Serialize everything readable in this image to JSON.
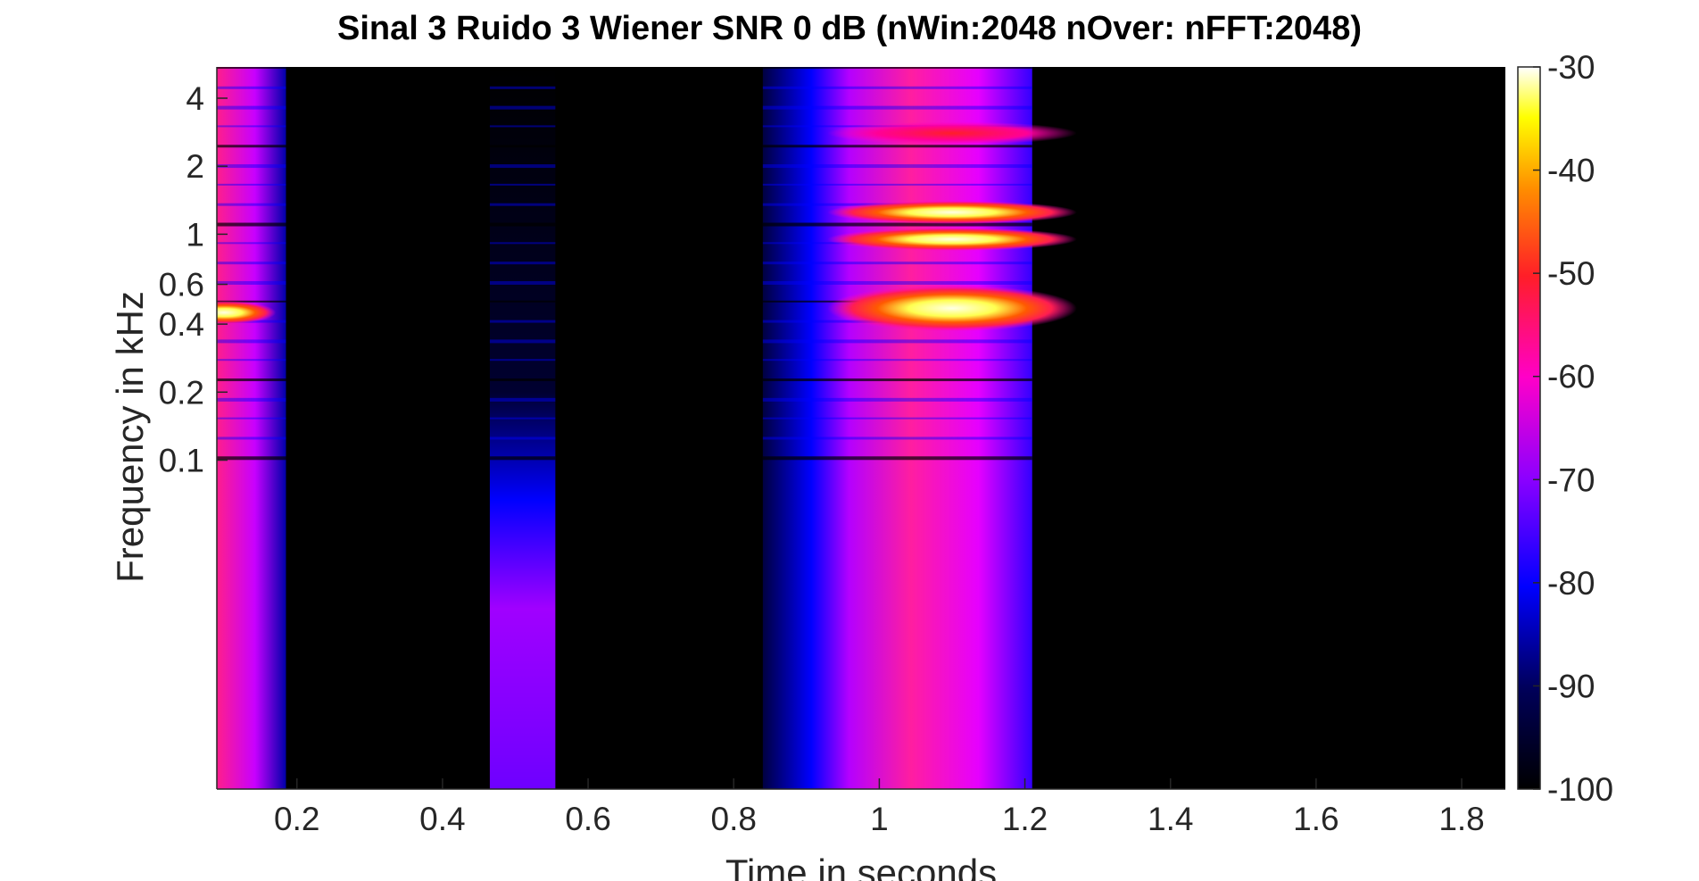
{
  "chart_data": {
    "type": "heatmap",
    "title": "Sinal 3 Ruido 3 Wiener SNR 0 dB (nWin:2048 nOver: nFFT:2048)",
    "xlabel": "Time in seconds",
    "ylabel": "Frequency in kHz",
    "x_scale": "linear",
    "y_scale": "log",
    "xlim": [
      0.09,
      1.86
    ],
    "ylim_khz": [
      0.0035,
      5.5
    ],
    "x_ticks": [
      {
        "value": 0.2,
        "label": "0.2"
      },
      {
        "value": 0.4,
        "label": "0.4"
      },
      {
        "value": 0.6,
        "label": "0.6"
      },
      {
        "value": 0.8,
        "label": "0.8"
      },
      {
        "value": 1.0,
        "label": "1"
      },
      {
        "value": 1.2,
        "label": "1.2"
      },
      {
        "value": 1.4,
        "label": "1.4"
      },
      {
        "value": 1.6,
        "label": "1.6"
      },
      {
        "value": 1.8,
        "label": "1.8"
      }
    ],
    "y_ticks": [
      {
        "value": 4,
        "label": "4"
      },
      {
        "value": 2,
        "label": "2"
      },
      {
        "value": 1,
        "label": "1"
      },
      {
        "value": 0.6,
        "label": "0.6"
      },
      {
        "value": 0.4,
        "label": "0.4"
      },
      {
        "value": 0.2,
        "label": "0.2"
      },
      {
        "value": 0.1,
        "label": "0.1"
      }
    ],
    "colorbar": {
      "colormap": "hot-blue",
      "range": [
        -100,
        -30
      ],
      "ticks": [
        {
          "value": -30,
          "label": "-30"
        },
        {
          "value": -40,
          "label": "-40"
        },
        {
          "value": -50,
          "label": "-50"
        },
        {
          "value": -60,
          "label": "-60"
        },
        {
          "value": -70,
          "label": "-70"
        },
        {
          "value": -80,
          "label": "-80"
        },
        {
          "value": -90,
          "label": "-90"
        },
        {
          "value": -100,
          "label": "-100"
        }
      ]
    },
    "segments": [
      {
        "t_start": 0.09,
        "t_end": 0.185,
        "level_db": -75
      },
      {
        "t_start": 0.465,
        "t_end": 0.555,
        "level_db": -82
      },
      {
        "t_start": 0.84,
        "t_end": 1.21,
        "level_db": -70
      }
    ],
    "peaks": [
      {
        "t": 0.1,
        "f_khz": 0.45,
        "level_db": -45
      },
      {
        "t": 1.1,
        "f_khz": 0.47,
        "level_db": -32
      },
      {
        "t": 1.1,
        "f_khz": 0.95,
        "level_db": -50
      },
      {
        "t": 1.1,
        "f_khz": 1.25,
        "level_db": -45
      },
      {
        "t": 1.1,
        "f_khz": 2.8,
        "level_db": -62
      }
    ],
    "colors": {
      "background": "#000000",
      "low": "#0000ff",
      "mid": "#ff00c8",
      "high": "#ff1e28",
      "peak": "#ffffc8"
    }
  }
}
